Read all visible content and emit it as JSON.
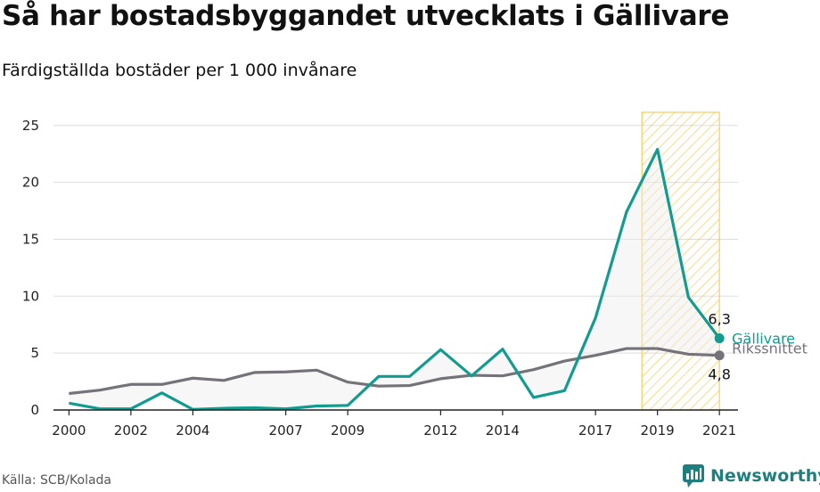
{
  "title": "Så har bostadsbyggandet utvecklats i Gällivare",
  "subtitle": "Färdigställda bostäder per 1 000 invånare",
  "source": "Källa: SCB/Kolada",
  "logo": "Newsworthy",
  "colors": {
    "gallivare": "#129b8e",
    "riket": "#76727a",
    "highlight": "#f5c445",
    "logo": "#1f7f7f"
  },
  "chart_data": {
    "type": "line",
    "x": [
      2000,
      2001,
      2002,
      2003,
      2004,
      2005,
      2006,
      2007,
      2008,
      2009,
      2010,
      2011,
      2012,
      2013,
      2014,
      2015,
      2016,
      2017,
      2018,
      2019,
      2020,
      2021
    ],
    "xticks": [
      2000,
      2002,
      2004,
      2007,
      2009,
      2012,
      2014,
      2017,
      2019,
      2021
    ],
    "yticks": [
      0,
      5,
      10,
      15,
      20,
      25
    ],
    "ylim": [
      0,
      26
    ],
    "xlim": [
      1999.5,
      2021.6
    ],
    "highlight_range": [
      2018.5,
      2021
    ],
    "series": [
      {
        "name": "Gällivare",
        "values": [
          0.6,
          0.1,
          0.1,
          1.5,
          0.05,
          0.15,
          0.2,
          0.1,
          0.35,
          0.4,
          2.95,
          2.95,
          5.3,
          3.0,
          5.35,
          1.1,
          1.7,
          8.1,
          17.4,
          22.9,
          9.9,
          6.3
        ],
        "end_label": "6,3"
      },
      {
        "name": "Rikssnittet",
        "values": [
          1.45,
          1.75,
          2.25,
          2.25,
          2.8,
          2.6,
          3.3,
          3.35,
          3.5,
          2.45,
          2.1,
          2.15,
          2.75,
          3.05,
          3.0,
          3.55,
          4.3,
          4.8,
          5.4,
          5.4,
          4.9,
          4.8
        ],
        "end_label": "4,8"
      }
    ]
  }
}
